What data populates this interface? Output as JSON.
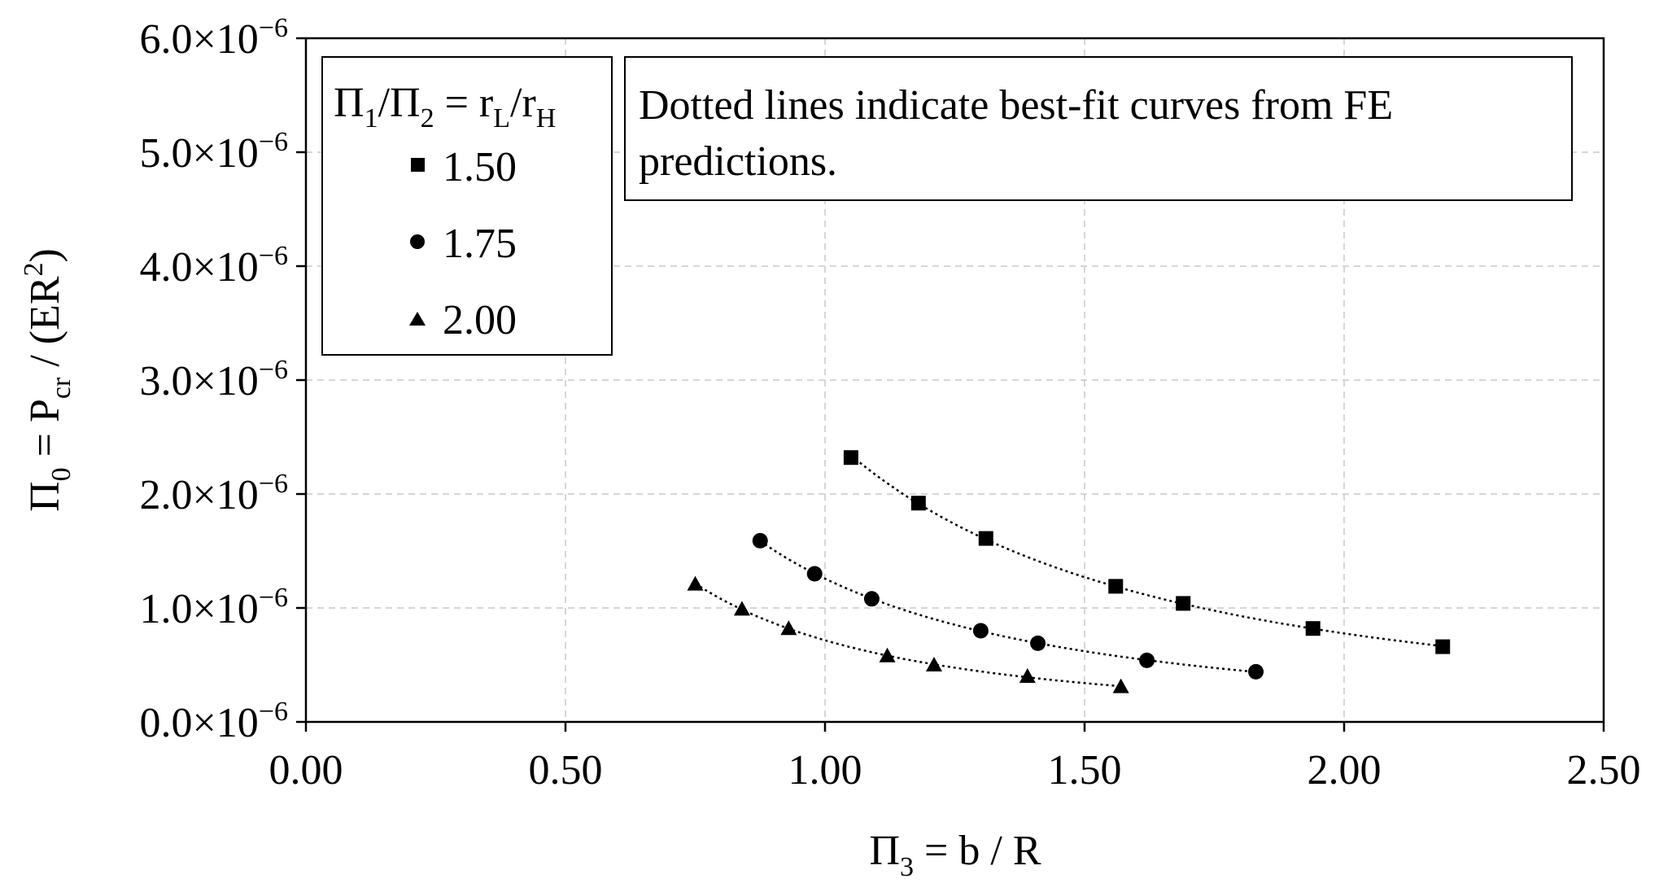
{
  "chart_data": {
    "type": "scatter",
    "xlabel": "Π",
    "xlabel_sub": "3",
    "xlabel_rest": " = b / R",
    "ylabel_parts": [
      "Π",
      "0",
      " = P",
      "cr",
      " / (ER",
      "2",
      ")"
    ],
    "xlim": [
      0,
      2.5
    ],
    "ylim": [
      0,
      6e-06
    ],
    "x_ticks": [
      0,
      0.5,
      1.0,
      1.5,
      2.0,
      2.5
    ],
    "x_tick_labels": [
      "0.00",
      "0.50",
      "1.00",
      "1.50",
      "2.00",
      "2.50"
    ],
    "y_ticks": [
      0,
      1e-06,
      2e-06,
      3e-06,
      4e-06,
      5e-06,
      6e-06
    ],
    "y_tick_mantissas": [
      "0.0",
      "1.0",
      "2.0",
      "3.0",
      "4.0",
      "5.0",
      "6.0"
    ],
    "y_tick_times": "×10",
    "y_tick_exponent": "−6",
    "grid": true,
    "legend_position": "top-left",
    "legend_title_parts": [
      "Π",
      "1",
      "/Π",
      "2",
      " = r",
      "L",
      "/r",
      "H"
    ],
    "series": [
      {
        "name": "1.50",
        "marker": "square",
        "x": [
          1.05,
          1.18,
          1.31,
          1.56,
          1.69,
          1.94,
          2.19
        ],
        "y": [
          2.32e-06,
          1.92e-06,
          1.61e-06,
          1.19e-06,
          1.04e-06,
          8.2e-07,
          6.6e-07
        ]
      },
      {
        "name": "1.75",
        "marker": "circle",
        "x": [
          0.875,
          0.98,
          1.09,
          1.3,
          1.41,
          1.62,
          1.83
        ],
        "y": [
          1.59e-06,
          1.3e-06,
          1.08e-06,
          8e-07,
          6.9e-07,
          5.4e-07,
          4.4e-07
        ]
      },
      {
        "name": "2.00",
        "marker": "triangle",
        "x": [
          0.75,
          0.84,
          0.93,
          1.12,
          1.21,
          1.39,
          1.57
        ],
        "y": [
          1.21e-06,
          9.9e-07,
          8.2e-07,
          5.8e-07,
          5e-07,
          4e-07,
          3.1e-07
        ]
      }
    ],
    "annotation_lines": [
      "Dotted lines indicate best-fit curves from FE",
      "predictions."
    ]
  },
  "colors": {
    "marker": "#000000",
    "grid": "#c8c8c8",
    "axis": "#000000"
  }
}
